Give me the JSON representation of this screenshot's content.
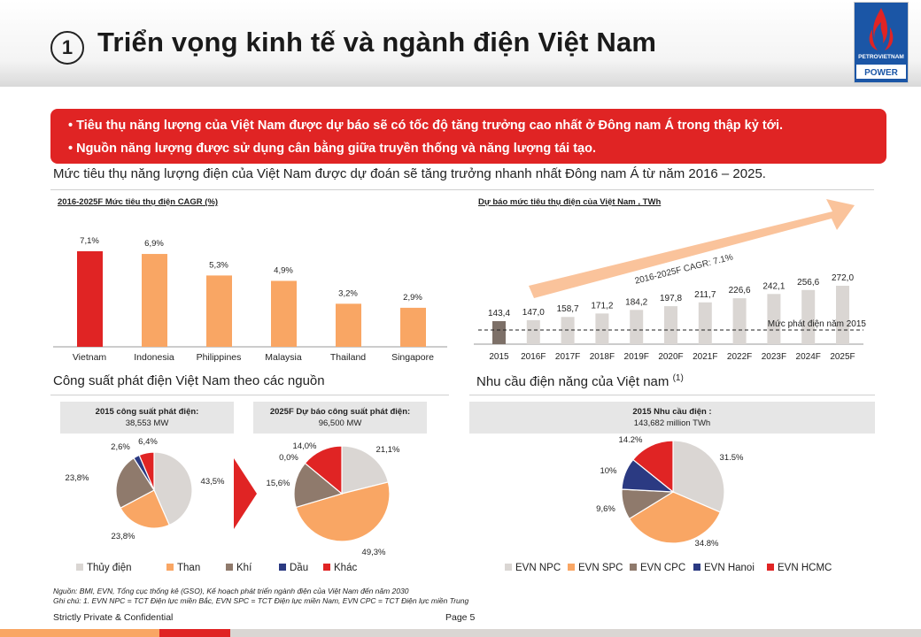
{
  "header": {
    "number": "1",
    "title": "Triển vọng kinh tế và ngành điện Việt Nam",
    "logo_text_1": "PETROVIETNAM",
    "logo_text_2": "POWER"
  },
  "highlights": [
    "•  Tiêu thụ năng lượng của Việt Nam được dự báo sẽ có tốc độ tăng trưởng cao nhất ở Đông nam Á trong thập kỷ tới.",
    "•   Nguồn năng lượng được  sử dụng cân bằng giữa truyền thống và năng lượng tái tạo."
  ],
  "subheading": "Mức tiêu thụ năng lượng điện của Việt Nam được dự đoán sẽ tăng trưởng nhanh nhất Đông nam Á từ năm 2016 – 2025.",
  "colors": {
    "red": "#e02424",
    "orange": "#f9a664",
    "gray": "#dad6d3",
    "dark_gray": "#7d7068",
    "navy": "#2b3a82",
    "brown": "#8f7a6c"
  },
  "section_titles": {
    "capacity": "Công suất phát điện Việt Nam theo các nguồn",
    "demand": "Nhu cầu điện năng của Việt nam",
    "demand_sup": "(1)"
  },
  "boxes": {
    "cap2015_title": "2015 công suất phát điện:",
    "cap2015_value": "38,553 MW",
    "cap2025_title": "2025F Dự báo công suất phát điện:",
    "cap2025_value": "96,500 MW",
    "demand_title": "2015 Nhu cầu điện :",
    "demand_value": "143,682 million TWh"
  },
  "legends": {
    "capacity": [
      "Thủy điện",
      "Than",
      "Khí",
      "Dầu",
      "Khác"
    ],
    "demand": [
      "EVN NPC",
      "EVN SPC",
      "EVN CPC",
      "EVN Hanoi",
      "EVN HCMC"
    ]
  },
  "chart_data": [
    {
      "type": "bar",
      "title": "2016-2025F Mức tiêu thụ điện CAGR (%)",
      "categories": [
        "Vietnam",
        "Indonesia",
        "Philippines",
        "Malaysia",
        "Thailand",
        "Singapore"
      ],
      "values": [
        7.1,
        6.9,
        5.3,
        4.9,
        3.2,
        2.9
      ],
      "labels": [
        "7,1%",
        "6,9%",
        "5,3%",
        "4,9%",
        "3,2%",
        "2,9%"
      ],
      "ylim": [
        0,
        8
      ]
    },
    {
      "type": "bar",
      "title": "Dự báo mức tiêu thụ điện của Việt Nam , TWh",
      "categories": [
        "2015",
        "2016F",
        "2017F",
        "2018F",
        "2019F",
        "2020F",
        "2021F",
        "2022F",
        "2023F",
        "2024F",
        "2025F"
      ],
      "values": [
        143.4,
        147.0,
        158.7,
        171.2,
        184.2,
        197.8,
        211.7,
        226.6,
        242.1,
        256.6,
        272.0
      ],
      "labels": [
        "143,4",
        "147,0",
        "158,7",
        "171,2",
        "184,2",
        "197,8",
        "211,7",
        "226,6",
        "242,1",
        "256,6",
        "272,0"
      ],
      "annotations": [
        "2016-2025F CAGR: 7.1%",
        "Mức phát điện năm 2015"
      ],
      "ylim": [
        80,
        280
      ]
    },
    {
      "type": "pie",
      "title": "2015 công suất phát điện:",
      "labels": [
        "Thủy điện",
        "Than",
        "Khí",
        "Dầu",
        "Khác"
      ],
      "values": [
        43.5,
        23.8,
        23.8,
        2.6,
        6.4
      ],
      "value_labels": [
        "43,5%",
        "23,8%",
        "23,8%",
        "2,6%",
        "6,4%"
      ]
    },
    {
      "type": "pie",
      "title": "2025F Dự báo công suất phát điện:",
      "labels": [
        "Thủy điện",
        "Than",
        "Khí",
        "Dầu",
        "Khác"
      ],
      "values": [
        21.1,
        49.3,
        15.6,
        0.0,
        14.0
      ],
      "value_labels": [
        "21,1%",
        "49,3%",
        "15,6%",
        "0,0%",
        "14,0%"
      ]
    },
    {
      "type": "pie",
      "title": "2015 Nhu cầu điện :",
      "labels": [
        "EVN NPC",
        "EVN SPC",
        "EVN CPC",
        "EVN Hanoi",
        "EVN HCMC"
      ],
      "values": [
        31.5,
        34.8,
        9.6,
        10,
        14.2
      ],
      "value_labels": [
        "31.5%",
        "34.8%",
        "9,6%",
        "10%",
        "14.2%"
      ]
    }
  ],
  "footnote": [
    "Nguồn: BMI, EVN, Tổng cục thống kê (GSO), Kế hoạch phát triển ngành điện của Việt Nam đến năm 2030",
    "Ghi chú: 1. EVN NPC = TCT Điện lực miền Bắc, EVN SPC = TCT Điện lực miền Nam, EVN CPC = TCT  Điện lực miền Trung"
  ],
  "footer": {
    "confidential": "Strictly Private & Confidential",
    "page": "Page 5"
  }
}
